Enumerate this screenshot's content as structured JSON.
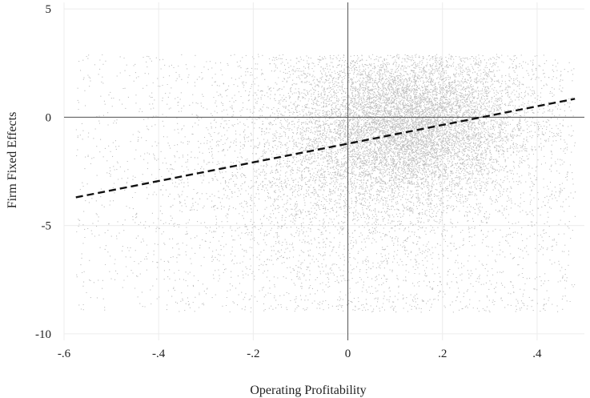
{
  "chart_data": {
    "type": "scatter",
    "title": "",
    "xlabel": "Operating Profitability",
    "ylabel": "Firm Fixed Effects",
    "xlim": [
      -0.6,
      0.5
    ],
    "ylim": [
      -10.3,
      5.3
    ],
    "x_ticks": [
      -0.6,
      -0.4,
      -0.2,
      0,
      0.2,
      0.4
    ],
    "x_tick_labels": [
      "-.6",
      "-.4",
      "-.2",
      "0",
      ".2",
      ".4"
    ],
    "y_ticks": [
      -10,
      -5,
      0,
      5
    ],
    "y_tick_labels": [
      "-10",
      "-5",
      "0",
      "5"
    ],
    "grid": true,
    "reference_lines": {
      "x": 0,
      "y": 0
    },
    "series": [
      {
        "kind": "scatter-cloud",
        "x_range": [
          -0.575,
          0.48
        ],
        "y_range": [
          -9.0,
          2.9
        ],
        "center": [
          0.12,
          -0.5
        ],
        "color": "#b8b8b8"
      },
      {
        "kind": "fitted-line",
        "style": "dashed",
        "color": "#111111",
        "points": [
          [
            -0.575,
            -3.7
          ],
          [
            0.48,
            0.85
          ]
        ]
      }
    ]
  }
}
